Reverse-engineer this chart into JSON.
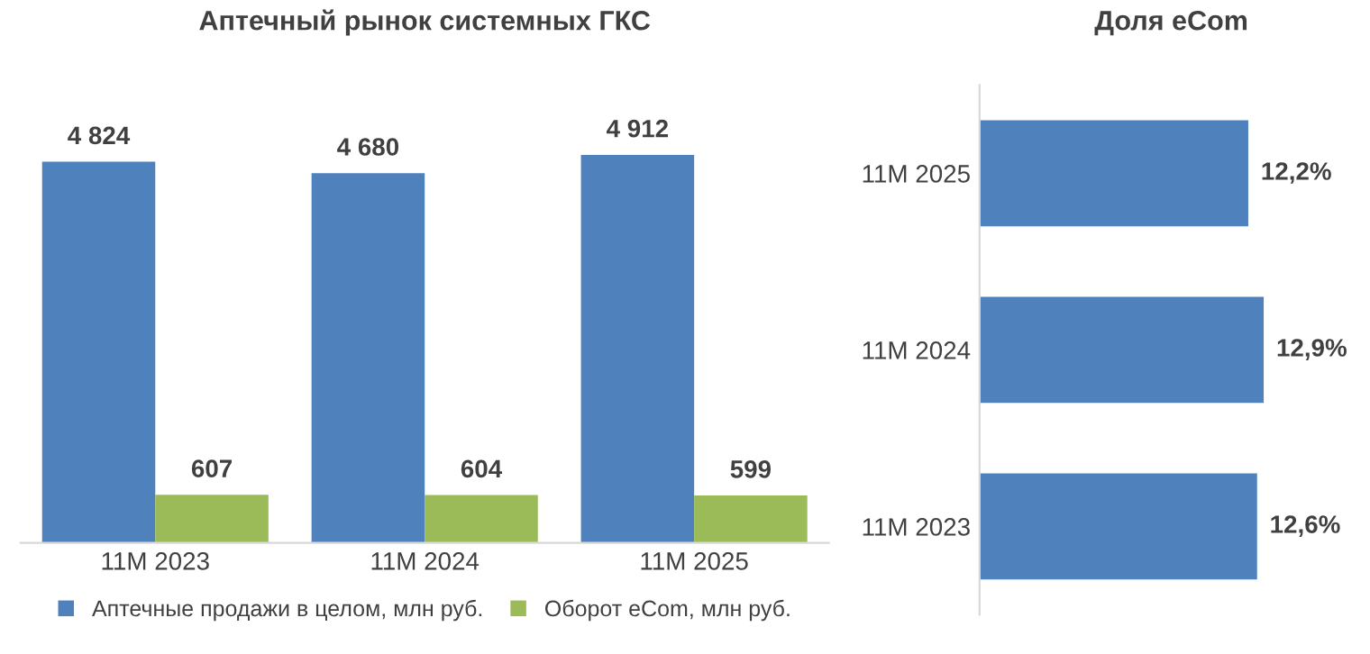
{
  "chart_data": [
    {
      "type": "bar",
      "title": "Аптечный рынок системных ГКС",
      "categories": [
        "11M 2023",
        "11M 2024",
        "11M 2025"
      ],
      "series": [
        {
          "name": "Аптечные продажи в целом, млн руб.",
          "color": "#4f81bd",
          "values": [
            4824,
            4680,
            4912
          ],
          "value_labels": [
            "4 824",
            "4 680",
            "4 912"
          ]
        },
        {
          "name": "Оборот eCom, млн руб.",
          "color": "#9bbb59",
          "values": [
            607,
            604,
            599
          ],
          "value_labels": [
            "607",
            "604",
            "599"
          ]
        }
      ],
      "legend": "bottom",
      "tick_labels": "x",
      "grid": false
    },
    {
      "type": "bar",
      "title": "Доля eCom",
      "orientation": "horizontal",
      "categories": [
        "11M 2025",
        "11M 2024",
        "11M 2023"
      ],
      "series": [
        {
          "color": "#4f81bd",
          "values": [
            12.2,
            12.9,
            12.6
          ],
          "value_labels": [
            "12,2%",
            "12,9%",
            "12,6%"
          ]
        }
      ],
      "tick_labels": "y",
      "grid": false
    }
  ]
}
